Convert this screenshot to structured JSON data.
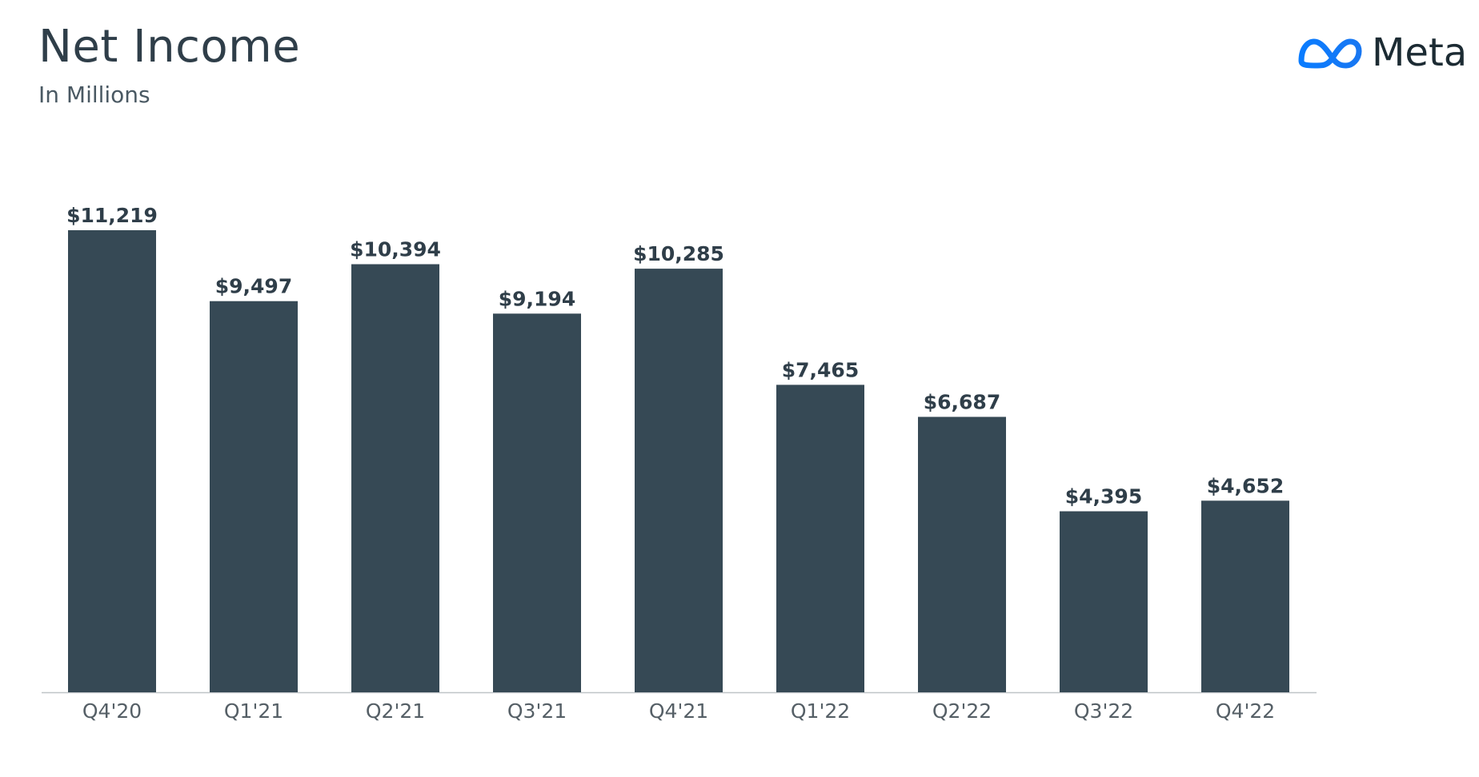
{
  "header": {
    "title": "Net Income",
    "subtitle": "In Millions"
  },
  "logo": {
    "icon": "meta-infinity-logo-icon",
    "text": "Meta",
    "accent_color": "#1877F2"
  },
  "chart_data": {
    "type": "bar",
    "title": "Net Income",
    "subtitle": "In Millions",
    "categories": [
      "Q4'20",
      "Q1'21",
      "Q2'21",
      "Q3'21",
      "Q4'21",
      "Q1'22",
      "Q2'22",
      "Q3'22",
      "Q4'22"
    ],
    "values": [
      11219,
      9497,
      10394,
      9194,
      10285,
      7465,
      6687,
      4395,
      4652
    ],
    "data_labels": [
      "$11,219",
      "$9,497",
      "$10,394",
      "$9,194",
      "$10,285",
      "$7,465",
      "$6,687",
      "$4,395",
      "$4,652"
    ],
    "ylim": [
      0,
      11219
    ],
    "bar_color": "#364955",
    "grid": false,
    "legend": "none"
  }
}
